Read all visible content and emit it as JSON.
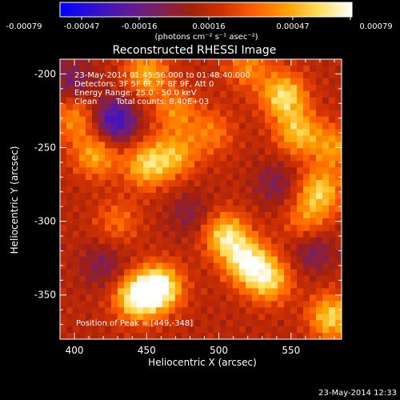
{
  "colors": {
    "background": "#000000",
    "foreground": "#ffffff"
  },
  "colorbar": {
    "tick_labels": [
      "-0.00079",
      "-0.00047",
      "-0.00016",
      "0.00016",
      "0.00047",
      "0.00079"
    ],
    "unit_label": "(photons cm⁻² s⁻¹ asec⁻²)",
    "stops": [
      "#0000ff",
      "#3010d0",
      "#5a1aa0",
      "#7a2060",
      "#a02010",
      "#d03000",
      "#ff6000",
      "#ffa000",
      "#ffe060",
      "#ffffff"
    ]
  },
  "chart_data": {
    "type": "heatmap",
    "title": "Reconstructed RHESSI Image",
    "xlabel": "Heliocentric X (arcsec)",
    "ylabel": "Heliocentric Y (arcsec)",
    "xlim": [
      390,
      585
    ],
    "ylim": [
      -380,
      -190
    ],
    "xticks": [
      400,
      450,
      500,
      550
    ],
    "yticks": [
      -200,
      -250,
      -300,
      -350
    ],
    "value_range": [
      -0.00079,
      0.00079
    ],
    "annotations": {
      "time": "23-May-2014 01:45:56.000 to 01:48:40.000",
      "detectors": "Detectors: 3F 5F 6F 7F 8F 9F, Att 0",
      "energy": "Energy Range: 25.0 - 50.0 keV",
      "clean": "Clean",
      "counts": "Total counts: 8.40E+03",
      "peak": "Position of Peak = [449,-348]"
    },
    "peak": [
      449,
      -348
    ],
    "sources": [
      {
        "x": 459,
        "y": -345,
        "v": 1.0
      },
      {
        "x": 443,
        "y": -352,
        "v": 0.9
      },
      {
        "x": 520,
        "y": -328,
        "v": 0.85
      },
      {
        "x": 505,
        "y": -310,
        "v": 0.8
      },
      {
        "x": 535,
        "y": -340,
        "v": 0.7
      },
      {
        "x": 545,
        "y": -215,
        "v": 0.8
      },
      {
        "x": 555,
        "y": -240,
        "v": 0.65
      },
      {
        "x": 570,
        "y": -280,
        "v": 0.7
      },
      {
        "x": 578,
        "y": -365,
        "v": 0.75
      },
      {
        "x": 450,
        "y": -262,
        "v": 0.7
      },
      {
        "x": 470,
        "y": -255,
        "v": 0.55
      },
      {
        "x": 415,
        "y": -255,
        "v": 0.6
      },
      {
        "x": 400,
        "y": -230,
        "v": 0.5
      },
      {
        "x": 450,
        "y": -200,
        "v": 0.6
      },
      {
        "x": 470,
        "y": -225,
        "v": 0.45
      },
      {
        "x": 520,
        "y": -195,
        "v": 0.45
      },
      {
        "x": 495,
        "y": -240,
        "v": 0.4
      },
      {
        "x": 430,
        "y": -300,
        "v": 0.35
      },
      {
        "x": 560,
        "y": -300,
        "v": 0.4
      },
      {
        "x": 580,
        "y": -250,
        "v": 0.5
      }
    ],
    "negative_sources": [
      {
        "x": 428,
        "y": -232,
        "v": -0.75
      },
      {
        "x": 398,
        "y": -205,
        "v": -0.35
      },
      {
        "x": 540,
        "y": -275,
        "v": -0.3
      },
      {
        "x": 565,
        "y": -320,
        "v": -0.35
      },
      {
        "x": 480,
        "y": -295,
        "v": -0.25
      },
      {
        "x": 420,
        "y": -330,
        "v": -0.3
      }
    ]
  },
  "footer": {
    "timestamp": "23-May-2014 12:33"
  }
}
